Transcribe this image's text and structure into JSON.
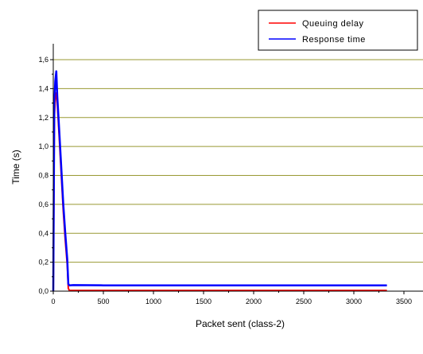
{
  "chart_data": {
    "type": "line",
    "title": "",
    "xlabel": "Packet sent (class-2)",
    "ylabel": "Time (s)",
    "xlim": [
      0,
      3600
    ],
    "ylim": [
      0,
      1.6
    ],
    "x_ticks": [
      0,
      500,
      1000,
      1500,
      2000,
      2500,
      3000,
      3500
    ],
    "x_tick_labels": [
      "0",
      "500",
      "1000",
      "1500",
      "2000",
      "2500",
      "3000",
      "3500"
    ],
    "y_ticks": [
      0,
      0.2,
      0.4,
      0.6,
      0.8,
      1.0,
      1.2,
      1.4,
      1.6
    ],
    "y_tick_labels": [
      "0,0",
      "0,2",
      "0,4",
      "0,6",
      "0,8",
      "1,0",
      "1,2",
      "1,4",
      "1,6"
    ],
    "grid": "horizontal",
    "grid_color": "#999933",
    "legend_placement": "top-right",
    "series": [
      {
        "name": "Queuing delay",
        "color": "#ff0000",
        "x": [
          0,
          10,
          20,
          30,
          40,
          60,
          80,
          100,
          120,
          140,
          150,
          160,
          200,
          500,
          1000,
          2000,
          3000,
          3330
        ],
        "y": [
          0.0,
          1.2,
          1.33,
          1.37,
          1.3,
          1.05,
          0.8,
          0.55,
          0.35,
          0.18,
          0.02,
          0.005,
          0.005,
          0.005,
          0.005,
          0.005,
          0.005,
          0.005
        ]
      },
      {
        "name": "Response time",
        "color": "#0000ff",
        "x": [
          0,
          10,
          20,
          30,
          40,
          60,
          80,
          100,
          120,
          140,
          150,
          160,
          200,
          500,
          1000,
          2000,
          3000,
          3330
        ],
        "y": [
          0.0,
          1.3,
          1.45,
          1.52,
          1.35,
          1.1,
          0.85,
          0.6,
          0.4,
          0.22,
          0.05,
          0.04,
          0.042,
          0.04,
          0.04,
          0.04,
          0.04,
          0.04
        ]
      }
    ]
  }
}
